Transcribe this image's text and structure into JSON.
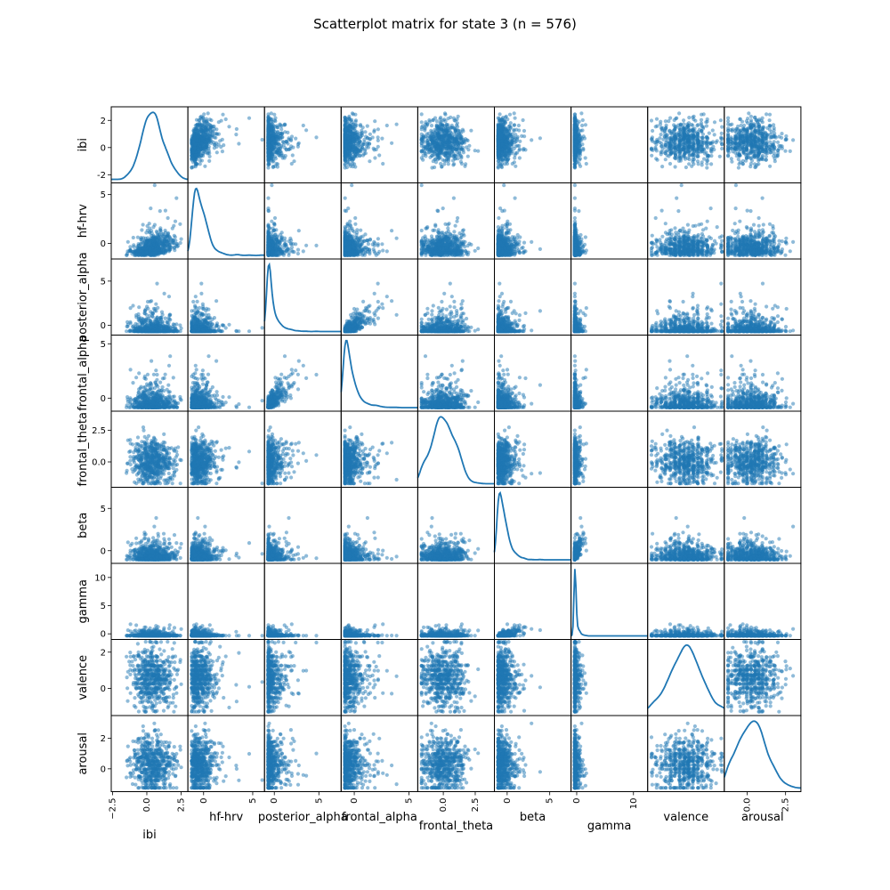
{
  "chart_data": {
    "type": "scatter",
    "title": "Scatterplot matrix for state 3 (n = 576)",
    "n": 576,
    "diagonal": "kde",
    "point_color": "#1f77b4",
    "point_alpha": 0.5,
    "variables": [
      {
        "name": "ibi",
        "range": [
          -2.6,
          3.0
        ],
        "mean": 0.4,
        "sd": 0.75,
        "skew": 0,
        "y_ticks": [
          {
            "v": 2,
            "label": "2"
          },
          {
            "v": 0,
            "label": "0"
          },
          {
            "v": -2,
            "label": "-2"
          }
        ],
        "x_ticks": [
          {
            "v": -2.5,
            "label": "−2.5"
          },
          {
            "v": 0.0,
            "label": "0.0"
          },
          {
            "v": 2.5,
            "label": "2.5"
          }
        ]
      },
      {
        "name": "hf-hrv",
        "range": [
          -1.6,
          6.2
        ],
        "mean": 0.0,
        "sd": 0.8,
        "skew": 1,
        "y_ticks": [
          {
            "v": 5,
            "label": "5"
          },
          {
            "v": 0,
            "label": "0"
          }
        ],
        "x_ticks": [
          {
            "v": 0,
            "label": "0"
          },
          {
            "v": 5,
            "label": "5"
          }
        ]
      },
      {
        "name": "posterior_alpha",
        "range": [
          -1.1,
          7.5
        ],
        "mean": -0.1,
        "sd": 0.75,
        "skew": 1,
        "y_ticks": [
          {
            "v": 5,
            "label": "5"
          },
          {
            "v": 0,
            "label": "0"
          }
        ],
        "x_ticks": [
          {
            "v": 0,
            "label": "0"
          },
          {
            "v": 5,
            "label": "5"
          }
        ]
      },
      {
        "name": "frontal_alpha",
        "range": [
          -1.2,
          5.8
        ],
        "mean": -0.1,
        "sd": 0.75,
        "skew": 1,
        "y_ticks": [
          {
            "v": 5,
            "label": "5"
          },
          {
            "v": 0,
            "label": "0"
          }
        ],
        "x_ticks": [
          {
            "v": 0,
            "label": "0"
          },
          {
            "v": 5,
            "label": "5"
          }
        ]
      },
      {
        "name": "frontal_theta",
        "range": [
          -2.0,
          4.0
        ],
        "mean": 0.0,
        "sd": 0.9,
        "skew": 0,
        "y_ticks": [
          {
            "v": 2.5,
            "label": "2.5"
          },
          {
            "v": 0.0,
            "label": "0.0"
          }
        ],
        "x_ticks": [
          {
            "v": 0.0,
            "label": "0.0"
          },
          {
            "v": 2.5,
            "label": "2.5"
          }
        ]
      },
      {
        "name": "beta",
        "range": [
          -1.5,
          7.5
        ],
        "mean": -0.1,
        "sd": 0.8,
        "skew": 1,
        "y_ticks": [
          {
            "v": 5,
            "label": "5"
          },
          {
            "v": 0,
            "label": "0"
          }
        ],
        "x_ticks": [
          {
            "v": 0,
            "label": "0"
          },
          {
            "v": 5,
            "label": "5"
          }
        ]
      },
      {
        "name": "gamma",
        "range": [
          -1.0,
          12.5
        ],
        "mean": -0.2,
        "sd": 0.5,
        "skew": 1,
        "y_ticks": [
          {
            "v": 10,
            "label": "10"
          },
          {
            "v": 5,
            "label": "5"
          },
          {
            "v": 0,
            "label": "0"
          }
        ],
        "x_ticks": [
          {
            "v": 0,
            "label": "0"
          },
          {
            "v": 10,
            "label": "10"
          }
        ]
      },
      {
        "name": "valence",
        "range": [
          -1.5,
          2.7
        ],
        "mean": 0.6,
        "sd": 0.8,
        "skew": 0,
        "y_ticks": [
          {
            "v": 2,
            "label": "2"
          },
          {
            "v": 0,
            "label": "0"
          }
        ],
        "x_ticks": []
      },
      {
        "name": "arousal",
        "range": [
          -1.5,
          3.5
        ],
        "mean": 0.3,
        "sd": 0.9,
        "skew": 0,
        "y_ticks": [
          {
            "v": 2,
            "label": "2"
          },
          {
            "v": 0,
            "label": "0"
          }
        ],
        "x_ticks": [
          {
            "v": 0.0,
            "label": "0.0"
          },
          {
            "v": 2.5,
            "label": "2.5"
          }
        ]
      }
    ],
    "correlations": [
      {
        "a": "posterior_alpha",
        "b": "frontal_alpha",
        "r": 0.85
      },
      {
        "a": "beta",
        "b": "gamma",
        "r": 0.7
      },
      {
        "a": "ibi",
        "b": "hf-hrv",
        "r": 0.35
      }
    ]
  }
}
